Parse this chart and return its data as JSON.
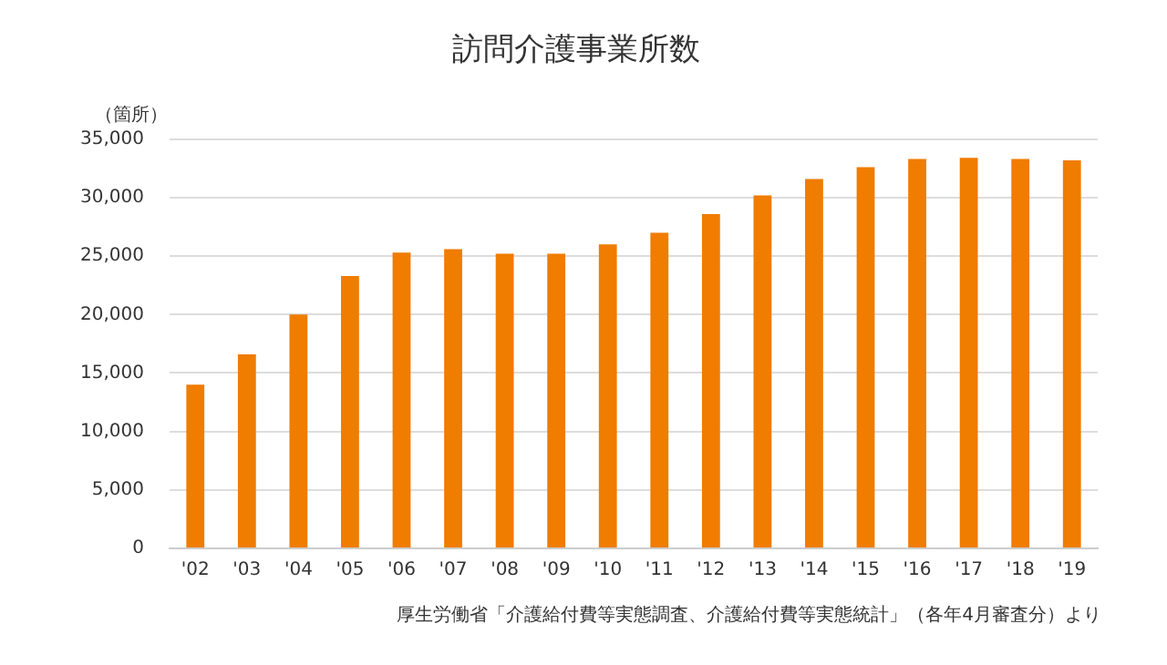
{
  "chart_data": {
    "type": "bar",
    "title": "訪問介護事業所数",
    "ylabel": "（箇所）",
    "annotations": [
      "厚生労働省「介護給付費等実態調査、介護給付費等実態統計」（各年4月審査分）より"
    ],
    "categories": [
      "'02",
      "'03",
      "'04",
      "'05",
      "'06",
      "'07",
      "'08",
      "'09",
      "'10",
      "'11",
      "'12",
      "'13",
      "'14",
      "'15",
      "'16",
      "'17",
      "'18",
      "'19"
    ],
    "values": [
      14000,
      16600,
      20000,
      23300,
      25300,
      25600,
      25200,
      25200,
      26000,
      27000,
      28600,
      30200,
      31600,
      32600,
      33300,
      33400,
      33300,
      33200
    ],
    "color": "#f07c00",
    "ylim": [
      0,
      35000
    ],
    "yticks": [
      0,
      {
        "value": 5000,
        "label": "5,000"
      },
      {
        "value": 10000,
        "label": "10,000"
      },
      {
        "value": 15000,
        "label": "15,000"
      },
      {
        "value": 20000,
        "label": "20,000"
      },
      {
        "value": 25000,
        "label": "25,000"
      },
      {
        "value": 30000,
        "label": "30,000"
      },
      {
        "value": 35000,
        "label": "35,000"
      }
    ],
    "grid": "y"
  }
}
